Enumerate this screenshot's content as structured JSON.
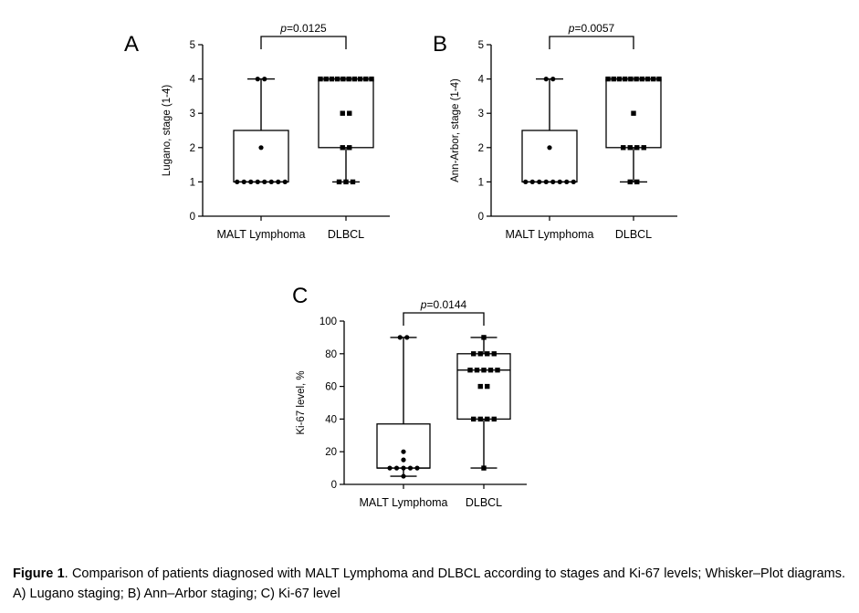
{
  "chart_data": [
    {
      "panel": "A",
      "type": "box",
      "ylabel": "Lugano, stage (1-4)",
      "ylim": [
        0,
        5
      ],
      "yticks": [
        0,
        1,
        2,
        3,
        4,
        5
      ],
      "categories": [
        "MALT Lymphoma",
        "DLBCL"
      ],
      "significance": "p=0.0125",
      "series": [
        {
          "category": "MALT Lymphoma",
          "marker": "circle",
          "box": {
            "min": 1,
            "q1": 1,
            "median": 1,
            "q3": 2.5,
            "max": 4
          },
          "points": [
            1,
            1,
            1,
            1,
            1,
            1,
            1,
            1,
            2,
            4,
            4
          ]
        },
        {
          "category": "DLBCL",
          "marker": "square",
          "box": {
            "min": 1,
            "q1": 2,
            "median": 4,
            "q3": 4,
            "max": 4
          },
          "points": [
            1,
            1,
            1,
            2,
            2,
            3,
            3,
            4,
            4,
            4,
            4,
            4,
            4,
            4,
            4,
            4,
            4
          ]
        }
      ]
    },
    {
      "panel": "B",
      "type": "box",
      "ylabel": "Ann-Arbor, stage (1-4)",
      "ylim": [
        0,
        5
      ],
      "yticks": [
        0,
        1,
        2,
        3,
        4,
        5
      ],
      "categories": [
        "MALT Lymphoma",
        "DLBCL"
      ],
      "significance": "p=0.0057",
      "series": [
        {
          "category": "MALT Lymphoma",
          "marker": "circle",
          "box": {
            "min": 1,
            "q1": 1,
            "median": 1,
            "q3": 2.5,
            "max": 4
          },
          "points": [
            1,
            1,
            1,
            1,
            1,
            1,
            1,
            1,
            2,
            4,
            4
          ]
        },
        {
          "category": "DLBCL",
          "marker": "square",
          "box": {
            "min": 1,
            "q1": 2,
            "median": 4,
            "q3": 4,
            "max": 4
          },
          "points": [
            1,
            1,
            2,
            2,
            2,
            2,
            3,
            4,
            4,
            4,
            4,
            4,
            4,
            4,
            4,
            4,
            4
          ]
        }
      ]
    },
    {
      "panel": "C",
      "type": "box",
      "ylabel": "Ki-67 level, %",
      "ylim": [
        0,
        100
      ],
      "yticks": [
        0,
        20,
        40,
        60,
        80,
        100
      ],
      "categories": [
        "MALT Lymphoma",
        "DLBCL"
      ],
      "significance": "p=0.0144",
      "series": [
        {
          "category": "MALT Lymphoma",
          "marker": "circle",
          "box": {
            "min": 5,
            "q1": 10,
            "median": 10,
            "q3": 37,
            "max": 90
          },
          "points": [
            5,
            10,
            10,
            10,
            10,
            10,
            15,
            20,
            90,
            90
          ]
        },
        {
          "category": "DLBCL",
          "marker": "square",
          "box": {
            "min": 10,
            "q1": 40,
            "median": 70,
            "q3": 80,
            "max": 90
          },
          "points": [
            10,
            40,
            40,
            40,
            40,
            60,
            60,
            70,
            70,
            70,
            70,
            70,
            80,
            80,
            80,
            80,
            90
          ]
        }
      ]
    }
  ],
  "caption": {
    "label": "Figure 1",
    "text": ". Comparison of patients diagnosed with MALT Lymphoma and DLBCL according to stages and Ki-67 levels; Whisker–Plot diagrams. A) Lugano staging; B) Ann–Arbor staging; C) Ki-67 level"
  }
}
